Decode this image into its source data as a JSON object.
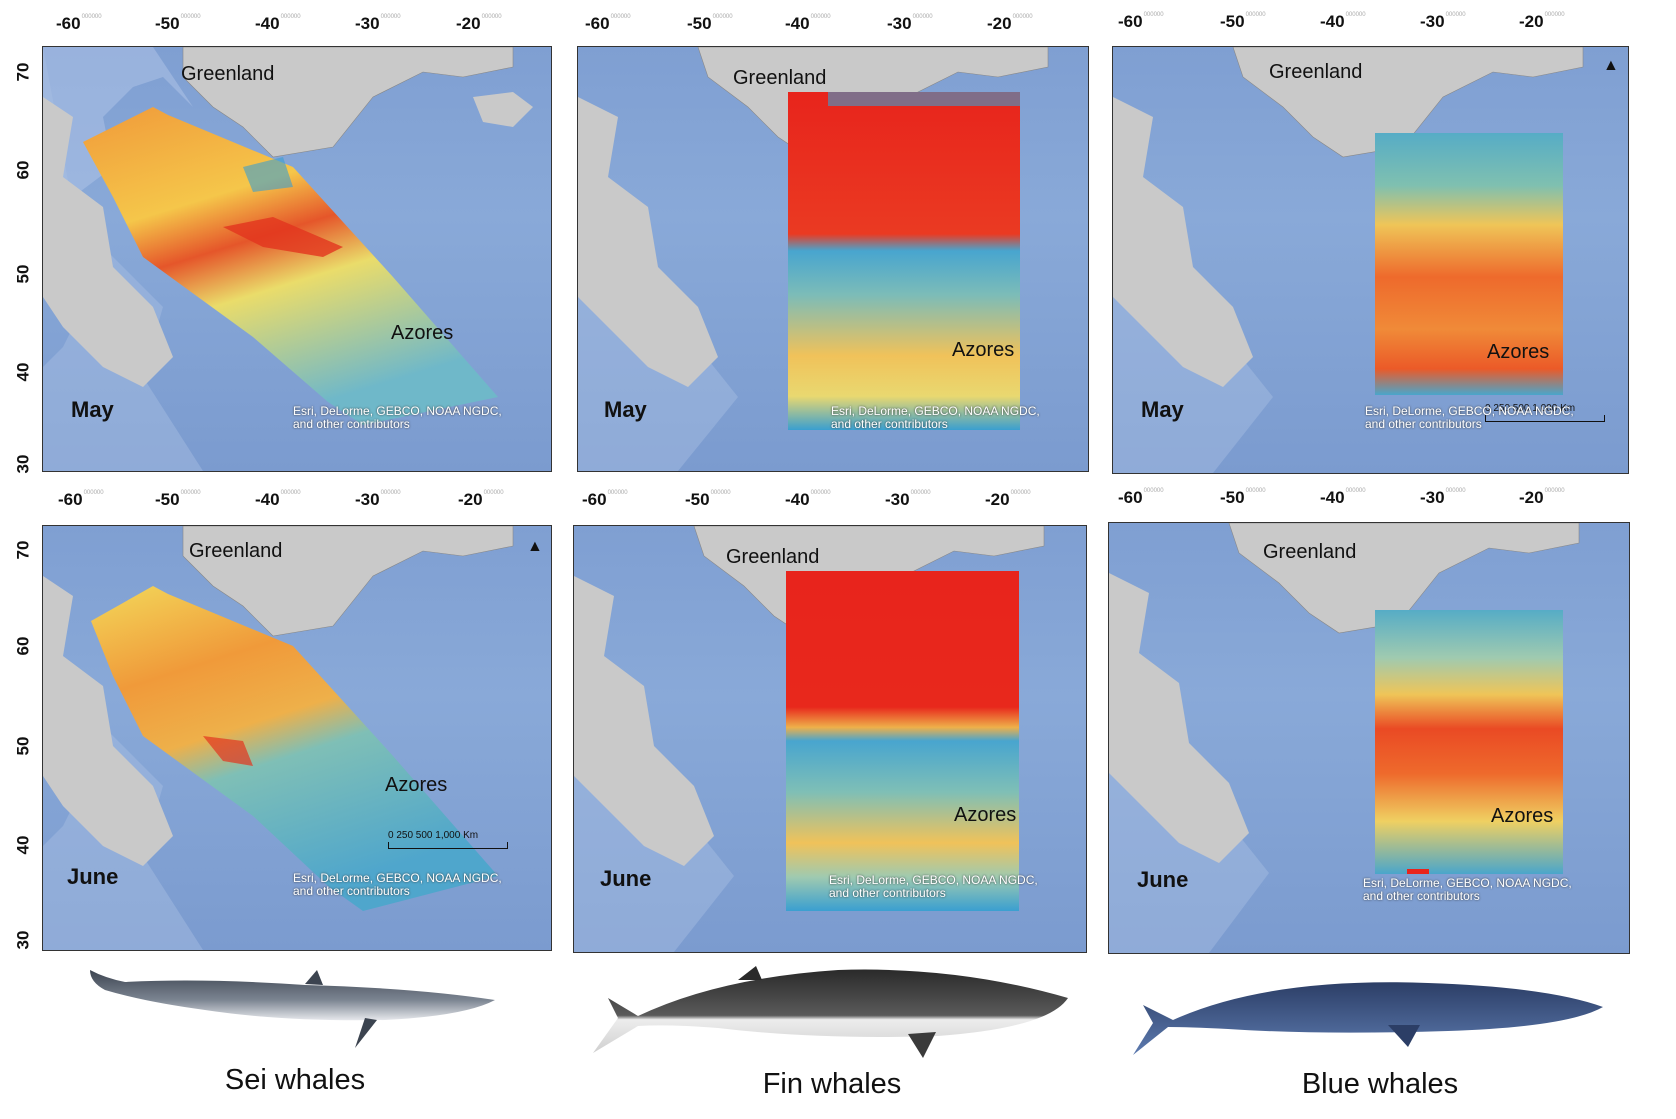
{
  "x_axis_ticks": [
    "-60",
    "-50",
    "-40",
    "-30",
    "-20"
  ],
  "x_axis_suffix": "000000",
  "y_axis_ticks": [
    "70",
    "60",
    "50",
    "40",
    "30"
  ],
  "labels": {
    "greenland": "Greenland",
    "azores": "Azores",
    "may": "May",
    "june": "June",
    "attribution_line1": "Esri, DeLorme, GEBCO, NOAA NGDC,",
    "attribution_line2": "and other contributors",
    "scale": "0  250 500       1,000 Km",
    "north": "N"
  },
  "species": [
    "Sei whales",
    "Fin whales",
    "Blue whales"
  ],
  "colors": {
    "ocean": "#84a4d6",
    "land": "#c9c9c9",
    "low": "#3a9fd0",
    "mid": "#f2e96a",
    "high": "#e8241c"
  }
}
